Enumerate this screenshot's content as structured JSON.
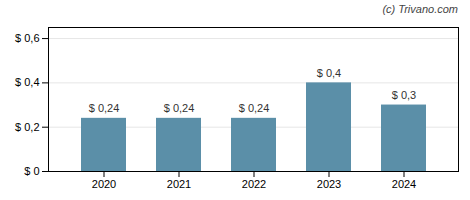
{
  "chart_data": {
    "type": "bar",
    "annotations": [
      "(c) Trivano.com"
    ],
    "categories": [
      "2020",
      "2021",
      "2022",
      "2023",
      "2024"
    ],
    "values": [
      0.24,
      0.24,
      0.24,
      0.4,
      0.3
    ],
    "value_labels": [
      "$ 0,24",
      "$ 0,24",
      "$ 0,24",
      "$ 0,4",
      "$ 0,3"
    ],
    "color": "#5b8fa8",
    "ylim": [
      0,
      0.65
    ],
    "yticks": [
      {
        "value": 0,
        "label": "$ 0"
      },
      {
        "value": 0.2,
        "label": "$ 0,2"
      },
      {
        "value": 0.4,
        "label": "$ 0,4"
      },
      {
        "value": 0.6,
        "label": "$ 0,6"
      }
    ],
    "grid": true,
    "data_labels": true
  }
}
